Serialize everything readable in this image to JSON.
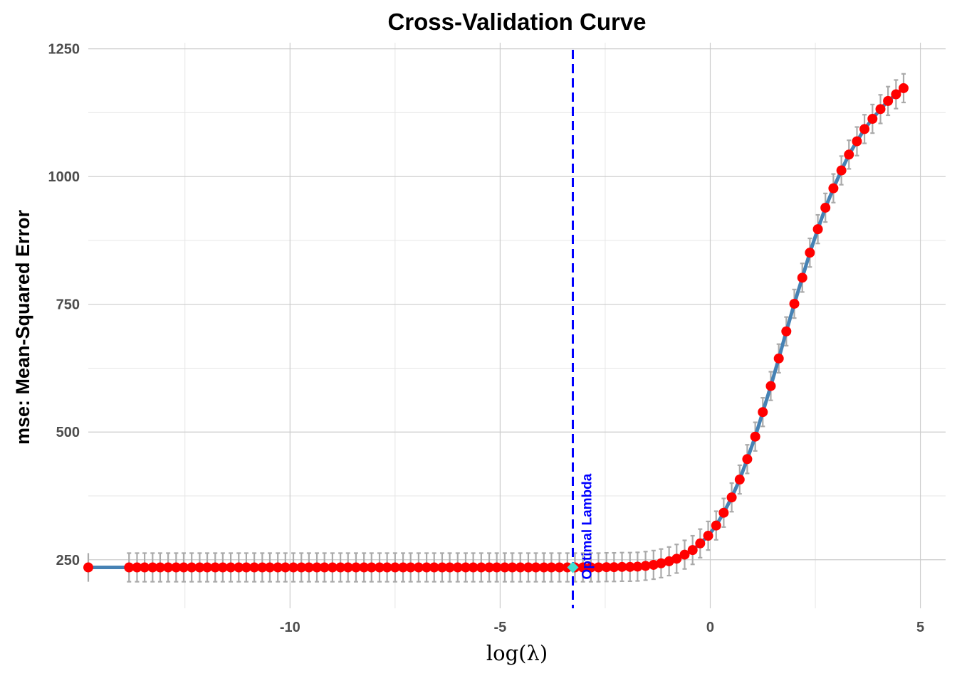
{
  "chart_data": {
    "type": "line",
    "title": "Cross-Validation Curve",
    "xlabel": "log(λ)",
    "ylabel": "mse: Mean-Squared Error",
    "xlim": [
      -14.8,
      5.6
    ],
    "ylim": [
      155,
      1262
    ],
    "x_ticks": [
      -10,
      -5,
      0,
      5
    ],
    "x_tick_labels": [
      "-10",
      "-5",
      "0",
      "5"
    ],
    "y_ticks": [
      250,
      500,
      750,
      1000,
      1250
    ],
    "y_tick_labels": [
      "250",
      "500",
      "750",
      "1000",
      "1250"
    ],
    "grid": true,
    "legend": "none",
    "series": [
      {
        "x": [
          -14.8,
          -13.83,
          -13.64,
          -13.46,
          -13.27,
          -13.09,
          -12.9,
          -12.71,
          -12.53,
          -12.34,
          -12.15,
          -11.97,
          -11.78,
          -11.6,
          -11.41,
          -11.22,
          -11.04,
          -10.85,
          -10.66,
          -10.48,
          -10.29,
          -10.11,
          -9.92,
          -9.73,
          -9.55,
          -9.36,
          -9.18,
          -8.99,
          -8.8,
          -8.62,
          -8.43,
          -8.24,
          -8.06,
          -7.87,
          -7.69,
          -7.5,
          -7.31,
          -7.13,
          -6.94,
          -6.75,
          -6.57,
          -6.38,
          -6.2,
          -6.01,
          -5.82,
          -5.64,
          -5.45,
          -5.26,
          -5.08,
          -4.89,
          -4.71,
          -4.52,
          -4.33,
          -4.15,
          -3.96,
          -3.78,
          -3.59,
          -3.4,
          -3.22,
          -3.03,
          -2.84,
          -2.66,
          -2.47,
          -2.29,
          -2.1,
          -1.91,
          -1.73,
          -1.54,
          -1.35,
          -1.17,
          -0.98,
          -0.8,
          -0.61,
          -0.42,
          -0.24,
          -0.05,
          0.14,
          0.32,
          0.51,
          0.7,
          0.88,
          1.07,
          1.25,
          1.44,
          1.63,
          1.81,
          2.0,
          2.19,
          2.37,
          2.56,
          2.74,
          2.93,
          3.12,
          3.3,
          3.49,
          3.67,
          3.86,
          4.05,
          4.23,
          4.42,
          4.6
        ],
        "y": [
          235,
          235,
          235,
          235,
          235,
          235,
          235,
          235,
          235,
          235,
          235,
          235,
          235,
          235,
          235,
          235,
          235,
          235,
          235,
          235,
          235,
          235,
          235,
          235,
          235,
          235,
          235,
          235,
          235,
          235,
          235,
          235,
          235,
          235,
          235,
          235,
          235,
          235,
          235,
          235,
          235,
          235,
          235,
          235,
          235,
          235,
          235,
          235,
          235,
          235,
          235,
          235,
          235,
          235,
          235,
          235,
          235,
          235,
          235,
          235,
          235,
          235,
          235.5,
          235.5,
          236,
          236,
          236.5,
          238,
          240,
          243,
          247,
          252,
          260,
          269,
          282,
          297,
          317,
          342,
          372,
          407,
          447,
          491,
          539,
          590,
          644,
          697,
          751,
          802,
          851,
          897,
          939,
          977,
          1012,
          1043,
          1069,
          1093,
          1113,
          1132,
          1148,
          1161,
          1173
        ],
        "error_halfwidth": 28,
        "line_color": "#4682B4",
        "point_color": "#FF0000",
        "errorbar_color": "#AAAAAA"
      }
    ],
    "vline": {
      "x": -3.27,
      "label": "Optimal Lambda",
      "color": "#0000FF",
      "style": "dashed"
    },
    "optimal_point": {
      "x": -3.27,
      "y": 235,
      "color": "#40E0D0",
      "shape": "diamond"
    }
  }
}
